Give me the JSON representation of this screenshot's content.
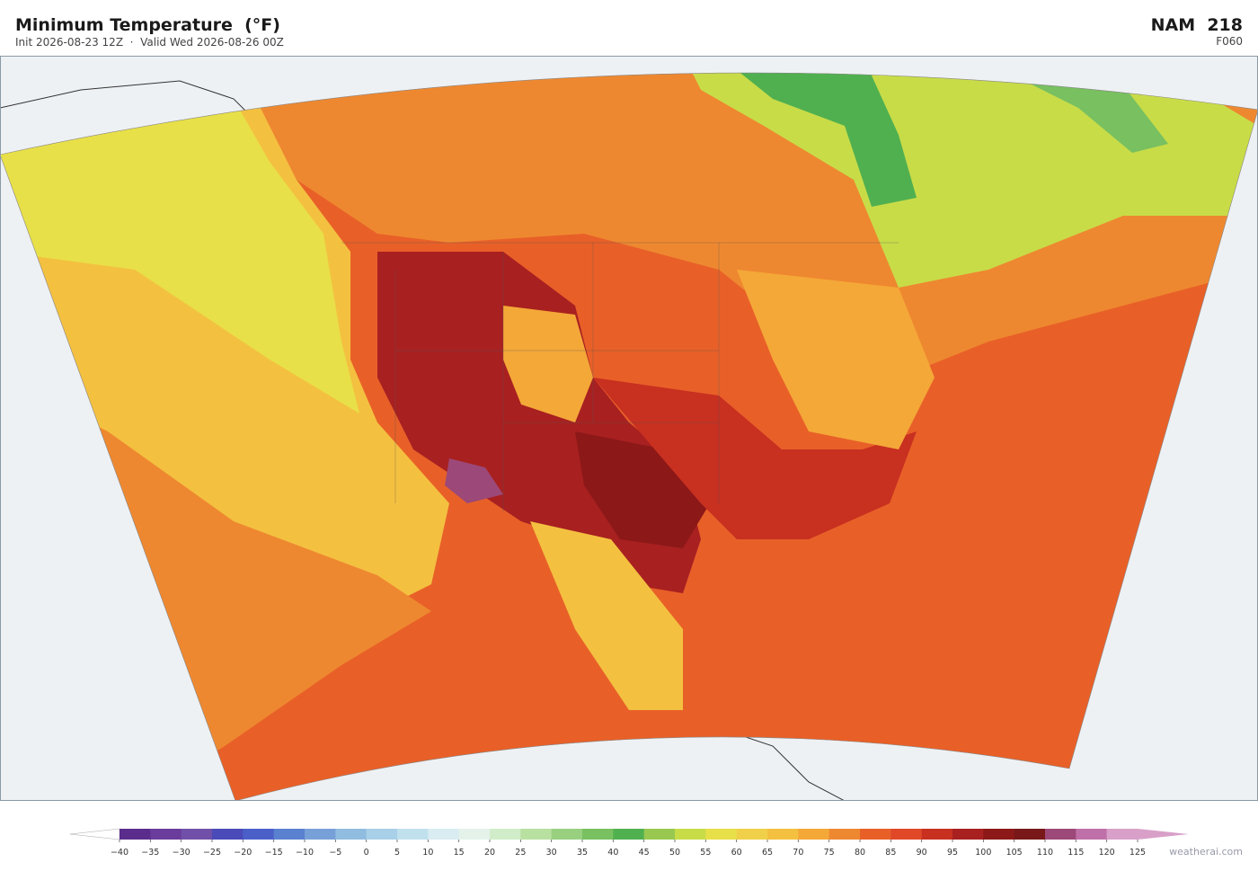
{
  "header": {
    "title": "Minimum Temperature  (°F)",
    "subtitle": "Init 2026-08-23 12Z  ·  Valid Wed 2026-08-26 00Z",
    "model": "NAM  218",
    "forecast_hour": "F060"
  },
  "colorbar": {
    "ticks": [
      {
        "value": -40,
        "label": "−40"
      },
      {
        "value": -35,
        "label": "−35"
      },
      {
        "value": -30,
        "label": "−30"
      },
      {
        "value": -25,
        "label": "−25"
      },
      {
        "value": -20,
        "label": "−20"
      },
      {
        "value": -15,
        "label": "−15"
      },
      {
        "value": -10,
        "label": "−10"
      },
      {
        "value": -5,
        "label": "−5"
      },
      0,
      5,
      10,
      15,
      20,
      25,
      30,
      35,
      40,
      45,
      50,
      55,
      60,
      65,
      70,
      75,
      80,
      85,
      90,
      95,
      100,
      105,
      110,
      115,
      120,
      125
    ],
    "colors": [
      "#5a2d8c",
      "#6a3c9c",
      "#7050a8",
      "#4a4ab8",
      "#4a60c8",
      "#5a80d0",
      "#78a0d8",
      "#90bce0",
      "#a8d0e8",
      "#c0e0ee",
      "#d8ecf2",
      "#e4f2ea",
      "#d0ecc8",
      "#b8e0a0",
      "#98d080",
      "#78c060",
      "#50b050",
      "#98c850",
      "#c8dc48",
      "#e8e048",
      "#f0d048",
      "#f4c040",
      "#f4a838",
      "#ee8830",
      "#e86028",
      "#e04828",
      "#c83020",
      "#a82020",
      "#8c1818",
      "#781818",
      "#9c4878",
      "#c070a8",
      "#d8a0c8"
    ],
    "under_color": "#ffffff",
    "over_color": "#d8a0c8"
  },
  "credit": "weatherai.com"
}
